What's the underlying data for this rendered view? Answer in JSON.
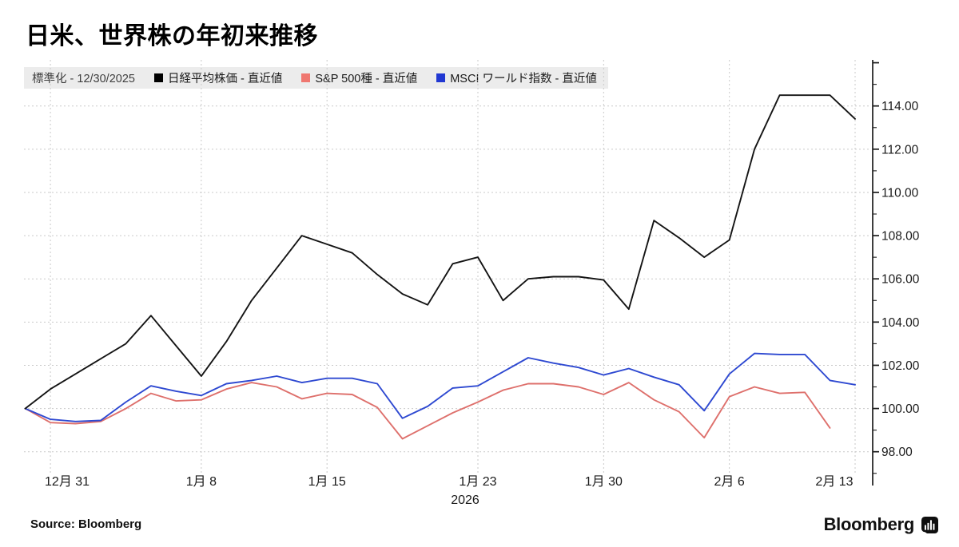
{
  "title": "日米、世界株の年初来推移",
  "legend": {
    "normalized_label": "標準化 - 12/30/2025",
    "items": [
      {
        "label": "日経平均株価 - 直近値",
        "color": "#000000"
      },
      {
        "label": "S&P 500種 - 直近値",
        "color": "#ef7770"
      },
      {
        "label": "MSCI ワールド指数 - 直近値",
        "color": "#2138d2"
      }
    ]
  },
  "source": "Source: Bloomberg",
  "logo_text": "Bloomberg",
  "chart_data": {
    "type": "line",
    "title": "日米、世界株の年初来推移",
    "subtitle_normalized": "標準化 - 12/30/2025",
    "x": [
      "12/30",
      "12/31",
      "1/1",
      "1/2",
      "1/5",
      "1/6",
      "1/7",
      "1/8",
      "1/9",
      "1/12",
      "1/13",
      "1/14",
      "1/15",
      "1/16",
      "1/19",
      "1/20",
      "1/21",
      "1/22",
      "1/23",
      "1/26",
      "1/27",
      "1/28",
      "1/29",
      "1/30",
      "2/2",
      "2/3",
      "2/4",
      "2/5",
      "2/6",
      "2/9",
      "2/10",
      "2/11",
      "2/12",
      "2/13"
    ],
    "series": [
      {
        "name": "日経平均株価 - 直近値",
        "color": "#141414",
        "values": [
          100.0,
          100.9,
          101.6,
          102.3,
          103.0,
          104.3,
          102.9,
          101.5,
          103.1,
          105.0,
          106.5,
          108.0,
          107.6,
          107.2,
          106.2,
          105.3,
          104.8,
          106.7,
          107.0,
          105.0,
          106.0,
          106.1,
          106.1,
          105.95,
          104.6,
          108.7,
          107.9,
          107.0,
          107.8,
          112.0,
          114.5,
          114.5,
          114.5,
          113.4
        ]
      },
      {
        "name": "S&P 500種 - 直近値",
        "color": "#de706c",
        "values": [
          100.0,
          99.35,
          99.3,
          99.4,
          100.0,
          100.7,
          100.35,
          100.4,
          100.9,
          101.2,
          101.0,
          100.45,
          100.7,
          100.65,
          100.05,
          98.6,
          99.2,
          99.8,
          100.3,
          100.85,
          101.15,
          101.15,
          101.0,
          100.65,
          101.2,
          100.4,
          99.85,
          98.65,
          100.55,
          101.0,
          100.7,
          100.75,
          99.1,
          null
        ]
      },
      {
        "name": "MSCI ワールド指数 - 直近値",
        "color": "#2e49d1",
        "values": [
          100.0,
          99.5,
          99.4,
          99.45,
          100.3,
          101.05,
          100.8,
          100.6,
          101.15,
          101.3,
          101.5,
          101.2,
          101.4,
          101.4,
          101.15,
          99.55,
          100.1,
          100.95,
          101.05,
          101.7,
          102.35,
          102.1,
          101.9,
          101.55,
          101.85,
          101.45,
          101.1,
          99.9,
          101.6,
          102.55,
          102.5,
          102.5,
          101.3,
          101.1
        ]
      }
    ],
    "x_tick_indices": [
      1,
      7,
      12,
      18,
      23,
      28,
      33
    ],
    "x_tick_labels": [
      "12月 31",
      "1月 8",
      "1月 15",
      "1月 23",
      "1月 30",
      "2月 6",
      "2月 13"
    ],
    "x_year_label": "2026",
    "y_ticks": [
      98,
      100,
      102,
      104,
      106,
      108,
      110,
      112,
      114
    ],
    "y_tick_labels": [
      "98.00",
      "100.00",
      "102.00",
      "104.00",
      "106.00",
      "108.00",
      "110.00",
      "112.00",
      "114.00"
    ],
    "ylim": [
      96.5,
      116.1
    ],
    "grid": "dotted",
    "legend_position": "top",
    "y_axis_side": "right"
  }
}
